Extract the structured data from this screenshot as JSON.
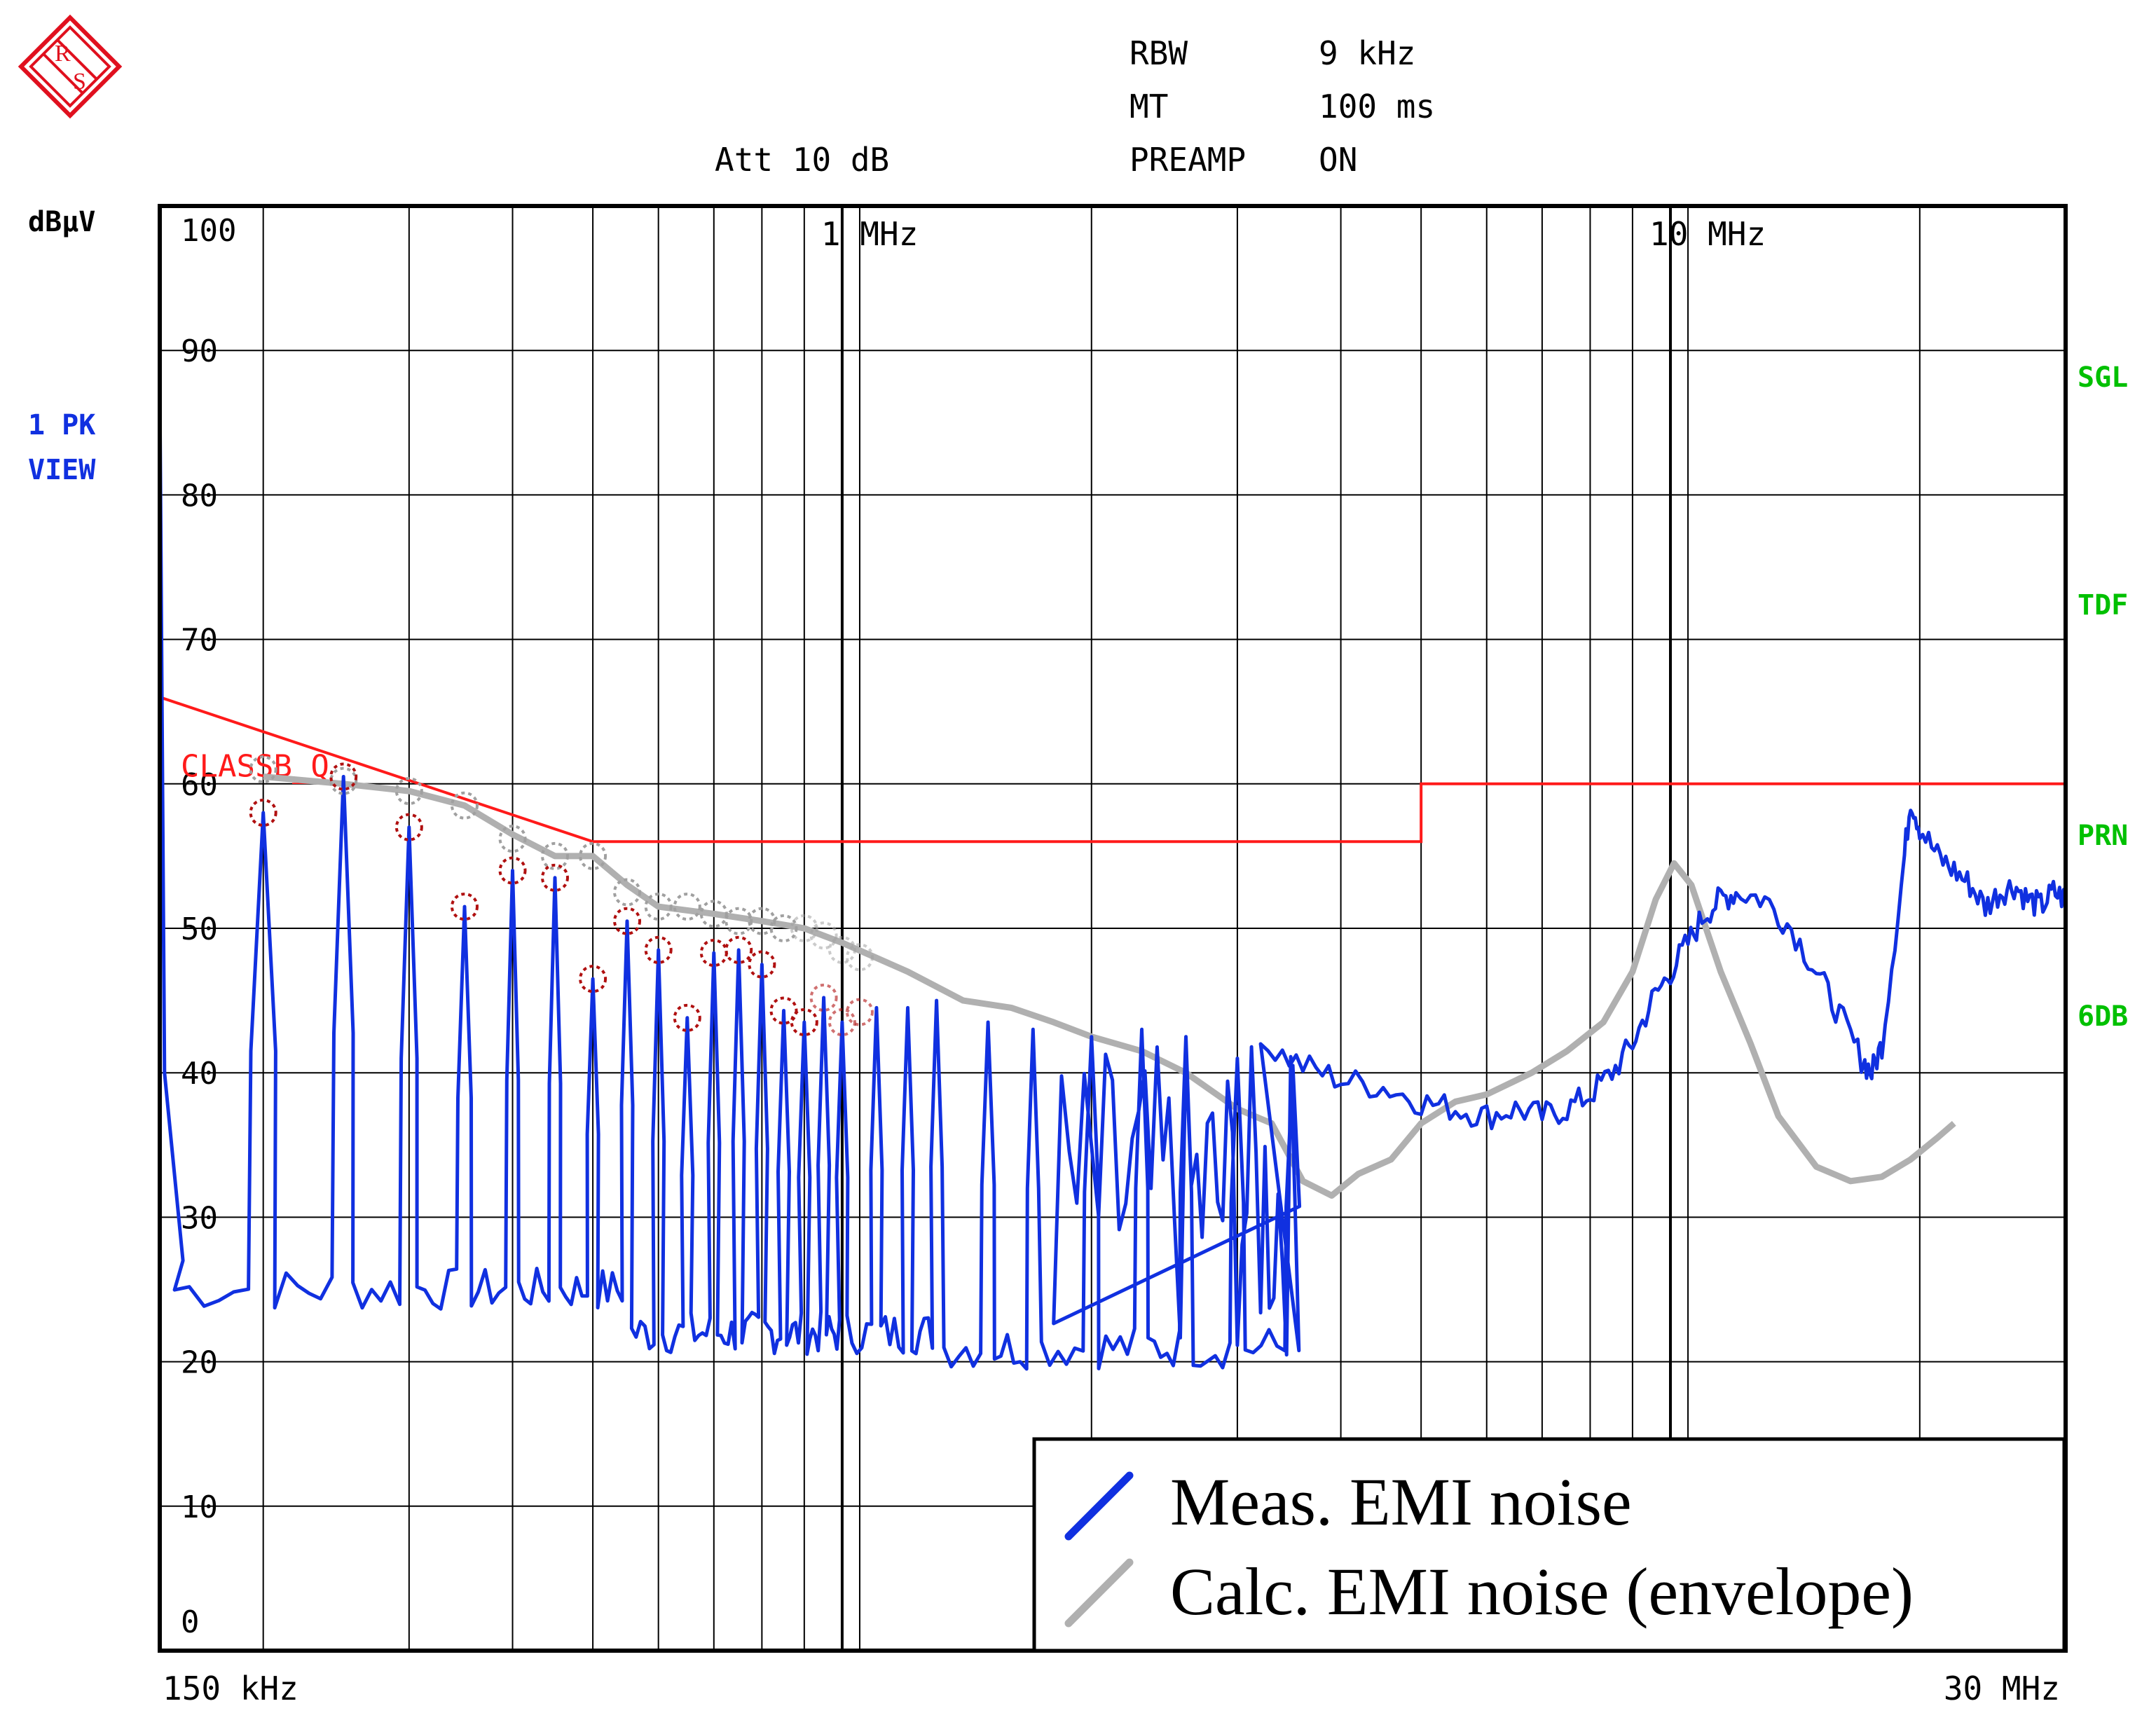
{
  "header": {
    "rbw_label": "RBW",
    "rbw_value": "9 kHz",
    "mt_label": "MT",
    "mt_value": "100 ms",
    "att_label": "Att 10 dB",
    "preamp_label": "PREAMP",
    "preamp_value": "ON",
    "unit_label": "dBµV",
    "trace_label_1": "1 PK",
    "trace_label_2": "VIEW"
  },
  "right_flags": [
    {
      "text": "SGL",
      "color": "#00c000"
    },
    {
      "text": "TDF",
      "color": "#00c000"
    },
    {
      "text": "PRN",
      "color": "#00c000"
    },
    {
      "text": "6DB",
      "color": "#00c000"
    }
  ],
  "colors": {
    "logo": "#e0101e",
    "measured": "#1030e0",
    "calculated": "#b0b0b0",
    "limit": "#ff1a1a",
    "marker_meas": "#b01010",
    "marker_calc": "#a0a0a0",
    "grid": "#000000"
  },
  "chart_data": {
    "type": "line",
    "xscale": "log",
    "xlim": [
      0.15,
      30
    ],
    "ylim": [
      0,
      100
    ],
    "x_start_label": "150 kHz",
    "x_end_label": "30 MHz",
    "x_annotations": [
      {
        "x": 1.0,
        "text": "1 MHz"
      },
      {
        "x": 10.0,
        "text": "10 MHz"
      }
    ],
    "y_ticks": [
      {
        "y": 100,
        "text": "100"
      },
      {
        "y": 90,
        "text": "90"
      },
      {
        "y": 80,
        "text": "80"
      },
      {
        "y": 70,
        "text": "70"
      },
      {
        "y": 60,
        "text": "60"
      },
      {
        "y": 50,
        "text": "50"
      },
      {
        "y": 40,
        "text": "40"
      },
      {
        "y": 30,
        "text": "30"
      },
      {
        "y": 20,
        "text": "20"
      },
      {
        "y": 10,
        "text": "10"
      },
      {
        "y": 0,
        "text": "0"
      }
    ],
    "x_gridlines_mhz": [
      0.2,
      0.3,
      0.4,
      0.5,
      0.6,
      0.7,
      0.8,
      0.9,
      1.0,
      1.05,
      2,
      3,
      4,
      5,
      6,
      7,
      8,
      9,
      10,
      10.5,
      20,
      30
    ],
    "limit_line": {
      "name": "CLASSB_Q",
      "points": [
        [
          0.15,
          66
        ],
        [
          0.5,
          56
        ],
        [
          5.0,
          56
        ],
        [
          5.0,
          60
        ],
        [
          30,
          60
        ]
      ]
    },
    "measured_peaks": [
      {
        "x": 0.15,
        "y": 88
      },
      {
        "x": 0.2,
        "y": 58
      },
      {
        "x": 0.25,
        "y": 60.5
      },
      {
        "x": 0.3,
        "y": 57
      },
      {
        "x": 0.35,
        "y": 51.5
      },
      {
        "x": 0.4,
        "y": 54
      },
      {
        "x": 0.45,
        "y": 53.5
      },
      {
        "x": 0.5,
        "y": 46.5
      },
      {
        "x": 0.55,
        "y": 50.5
      },
      {
        "x": 0.6,
        "y": 48.5
      },
      {
        "x": 0.65,
        "y": 43.8
      },
      {
        "x": 0.7,
        "y": 48.3
      },
      {
        "x": 0.75,
        "y": 48.5
      },
      {
        "x": 0.8,
        "y": 47.5
      },
      {
        "x": 0.85,
        "y": 44.3
      },
      {
        "x": 0.9,
        "y": 43.5
      },
      {
        "x": 0.95,
        "y": 45.2
      },
      {
        "x": 1.0,
        "y": 43.5
      },
      {
        "x": 1.1,
        "y": 44.5
      },
      {
        "x": 1.2,
        "y": 44.5
      },
      {
        "x": 1.3,
        "y": 45
      },
      {
        "x": 1.5,
        "y": 43.5
      },
      {
        "x": 1.7,
        "y": 43
      },
      {
        "x": 2.0,
        "y": 42.5
      },
      {
        "x": 2.3,
        "y": 43
      },
      {
        "x": 2.6,
        "y": 42.5
      },
      {
        "x": 3.0,
        "y": 41
      },
      {
        "x": 3.5,
        "y": 40.5
      }
    ],
    "measured_continuous": [
      [
        3.2,
        42
      ],
      [
        3.6,
        40.5
      ],
      [
        4.0,
        39.5
      ],
      [
        4.5,
        39
      ],
      [
        5.0,
        38
      ],
      [
        5.5,
        37.5
      ],
      [
        6.0,
        37
      ],
      [
        6.5,
        37.5
      ],
      [
        7.0,
        37
      ],
      [
        7.5,
        37.5
      ],
      [
        8.0,
        38.5
      ],
      [
        8.5,
        40
      ],
      [
        9.0,
        42
      ],
      [
        9.5,
        45
      ],
      [
        10.0,
        47
      ],
      [
        10.5,
        49
      ],
      [
        11.0,
        51
      ],
      [
        11.5,
        52
      ],
      [
        12.0,
        52.5
      ],
      [
        13.0,
        52
      ],
      [
        14.0,
        50
      ],
      [
        15.0,
        47
      ],
      [
        16.0,
        44
      ],
      [
        17.0,
        41
      ],
      [
        17.5,
        40
      ],
      [
        18.0,
        42
      ],
      [
        19.0,
        53
      ],
      [
        19.5,
        59
      ],
      [
        20.0,
        57
      ],
      [
        21.0,
        55
      ],
      [
        22.0,
        54
      ],
      [
        23.0,
        53
      ],
      [
        24.0,
        51.5
      ],
      [
        25.0,
        52.5
      ],
      [
        26.0,
        53
      ],
      [
        27.0,
        52
      ],
      [
        28.0,
        51.5
      ],
      [
        29.0,
        52.5
      ],
      [
        30.0,
        52
      ]
    ],
    "calculated_envelope": [
      [
        0.2,
        60.5
      ],
      [
        0.25,
        60
      ],
      [
        0.3,
        59.5
      ],
      [
        0.35,
        58.5
      ],
      [
        0.4,
        56.5
      ],
      [
        0.45,
        55
      ],
      [
        0.5,
        55
      ],
      [
        0.55,
        53
      ],
      [
        0.6,
        51.5
      ],
      [
        0.7,
        51
      ],
      [
        0.8,
        50.5
      ],
      [
        0.9,
        50
      ],
      [
        1.0,
        49
      ],
      [
        1.2,
        47
      ],
      [
        1.4,
        45
      ],
      [
        1.6,
        44.5
      ],
      [
        1.8,
        43.5
      ],
      [
        2.0,
        42.5
      ],
      [
        2.3,
        41.5
      ],
      [
        2.6,
        40
      ],
      [
        3.0,
        37.5
      ],
      [
        3.3,
        36.5
      ],
      [
        3.6,
        32.5
      ],
      [
        3.9,
        31.5
      ],
      [
        4.2,
        33
      ],
      [
        4.6,
        34
      ],
      [
        5.0,
        36.5
      ],
      [
        5.5,
        38
      ],
      [
        6.0,
        38.5
      ],
      [
        6.8,
        40
      ],
      [
        7.5,
        41.5
      ],
      [
        8.3,
        43.5
      ],
      [
        9.0,
        47
      ],
      [
        9.6,
        52
      ],
      [
        10.1,
        54.5
      ],
      [
        10.6,
        53
      ],
      [
        11.5,
        47
      ],
      [
        12.5,
        42
      ],
      [
        13.5,
        37
      ],
      [
        15.0,
        33.5
      ],
      [
        16.5,
        32.5
      ],
      [
        18.0,
        32.8
      ],
      [
        19.5,
        34
      ],
      [
        21.0,
        35.5
      ],
      [
        22.0,
        36.5
      ]
    ],
    "markers_measured": [
      [
        0.2,
        58
      ],
      [
        0.25,
        60.5
      ],
      [
        0.3,
        57
      ],
      [
        0.35,
        51.5
      ],
      [
        0.4,
        54
      ],
      [
        0.45,
        53.5
      ],
      [
        0.5,
        46.5
      ],
      [
        0.55,
        50.5
      ],
      [
        0.6,
        48.5
      ],
      [
        0.65,
        43.8
      ],
      [
        0.7,
        48.3
      ],
      [
        0.75,
        48.5
      ],
      [
        0.8,
        47.5
      ],
      [
        0.85,
        44.3
      ],
      [
        0.9,
        43.5
      ],
      [
        0.95,
        45.2
      ],
      [
        1.0,
        43.5
      ],
      [
        1.05,
        44.2
      ]
    ],
    "markers_calculated": [
      [
        0.2,
        61
      ],
      [
        0.25,
        60.2
      ],
      [
        0.3,
        59.5
      ],
      [
        0.35,
        58.5
      ],
      [
        0.4,
        56.2
      ],
      [
        0.45,
        55
      ],
      [
        0.5,
        55
      ],
      [
        0.55,
        52.5
      ],
      [
        0.6,
        51.5
      ],
      [
        0.65,
        51.5
      ],
      [
        0.7,
        51
      ],
      [
        0.75,
        50.5
      ],
      [
        0.8,
        50.5
      ],
      [
        0.85,
        50
      ],
      [
        0.9,
        50
      ],
      [
        0.95,
        49.5
      ],
      [
        1.0,
        48.5
      ],
      [
        1.05,
        48
      ]
    ],
    "legend": {
      "placement": "bottom-right",
      "entries": [
        {
          "name": "Meas. EMI noise",
          "series": "measured"
        },
        {
          "name": "Calc. EMI noise (envelope)",
          "series": "calculated"
        }
      ]
    }
  }
}
